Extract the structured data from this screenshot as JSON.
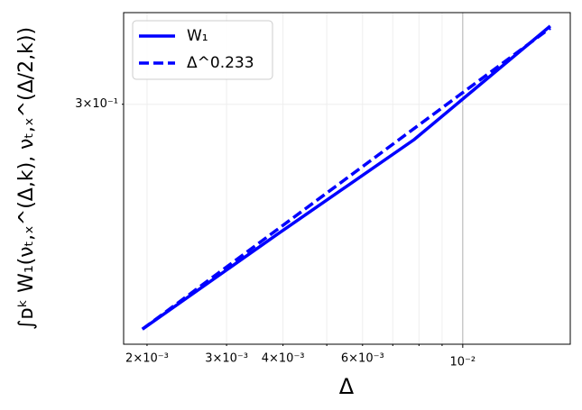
{
  "chart_data": {
    "type": "line",
    "xlabel": "Δ",
    "ylabel": "∫ᴅᵏ W₁(νₜ,ₓ^(Δ,k), νₜ,ₓ^(Δ/2,k))",
    "x": [
      0.001953125,
      0.00390625,
      0.0078125,
      0.015625
    ],
    "series": [
      {
        "name": "W₁",
        "color": "#0000ff",
        "dash": "solid",
        "values": [
          0.209,
          0.2437,
          0.2835,
          0.3402
        ]
      },
      {
        "name": "Δ^0.233",
        "color": "#0000ff",
        "dash": "dashed",
        "values": [
          0.209,
          0.2456,
          0.2886,
          0.3391
        ]
      }
    ],
    "xscale": "log",
    "yscale": "log",
    "xlim": [
      0.001775,
      0.0173
    ],
    "ylim": [
      0.204,
      0.3476
    ],
    "xticks": [
      {
        "value": 0.002,
        "label": "2×10⁻³"
      },
      {
        "value": 0.003,
        "label": "3×10⁻³"
      },
      {
        "value": 0.004,
        "label": "4×10⁻³"
      },
      {
        "value": 0.006,
        "label": "6×10⁻³"
      },
      {
        "value": 0.01,
        "label": "10⁻²"
      }
    ],
    "xminorticks": [
      0.005,
      0.007,
      0.008,
      0.009
    ],
    "yticks": [
      {
        "value": 0.3,
        "label": "3×10⁻¹"
      }
    ],
    "grid": true,
    "legend": "upper left"
  }
}
